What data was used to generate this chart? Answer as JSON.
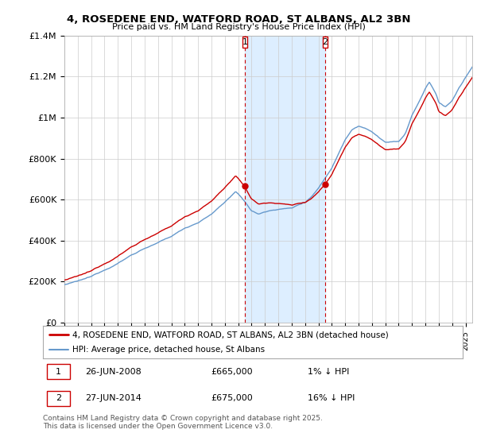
{
  "title_line1": "4, ROSEDENE END, WATFORD ROAD, ST ALBANS, AL2 3BN",
  "title_line2": "Price paid vs. HM Land Registry's House Price Index (HPI)",
  "ylim": [
    0,
    1400000
  ],
  "yticks": [
    0,
    200000,
    400000,
    600000,
    800000,
    1000000,
    1200000,
    1400000
  ],
  "ytick_labels": [
    "£0",
    "£200K",
    "£400K",
    "£600K",
    "£800K",
    "£1M",
    "£1.2M",
    "£1.4M"
  ],
  "xlim_start": 1995.0,
  "xlim_end": 2025.5,
  "purchase1_x": 2008.486,
  "purchase1_y": 665000,
  "purchase2_x": 2014.486,
  "purchase2_y": 675000,
  "purchase1_label": "26-JUN-2008",
  "purchase2_label": "27-JUN-2014",
  "purchase1_price": "£665,000",
  "purchase2_price": "£675,000",
  "purchase1_hpi": "1% ↓ HPI",
  "purchase2_hpi": "16% ↓ HPI",
  "legend_line1": "4, ROSEDENE END, WATFORD ROAD, ST ALBANS, AL2 3BN (detached house)",
  "legend_line2": "HPI: Average price, detached house, St Albans",
  "footer": "Contains HM Land Registry data © Crown copyright and database right 2025.\nThis data is licensed under the Open Government Licence v3.0.",
  "red_color": "#cc0000",
  "blue_color": "#6699cc",
  "shade_color": "#ddeeff",
  "grid_color": "#cccccc",
  "bg_color": "#ffffff"
}
